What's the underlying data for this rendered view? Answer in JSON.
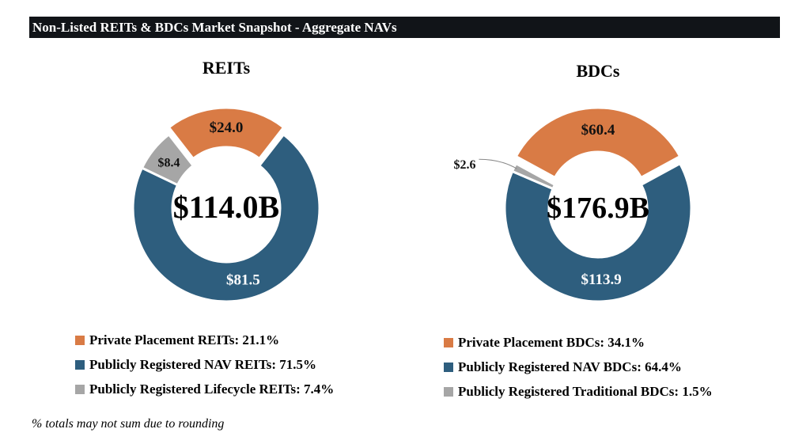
{
  "title": "Non-Listed REITs & BDCs Market Snapshot - Aggregate NAVs",
  "note": "% totals may not sum due to rounding",
  "colors": {
    "orange": "#D97B45",
    "blue": "#2E5E7E",
    "gray": "#A6A6A6"
  },
  "chart_data": [
    {
      "type": "pie",
      "title": "REITs",
      "center_label": "$114.0B",
      "categories": [
        "Private Placement REITs",
        "Publicly Registered NAV REITs",
        "Publicly Registered Lifecycle REITs"
      ],
      "values": [
        24.0,
        81.5,
        8.4
      ],
      "data_labels": [
        "$24.0",
        "$81.5",
        "$8.4"
      ],
      "legend": [
        "Private Placement REITs: 21.1%",
        "Publicly Registered NAV REITs: 71.5%",
        "Publicly Registered Lifecycle REITs: 7.4%"
      ],
      "legend_placement": "bottom"
    },
    {
      "type": "pie",
      "title": "BDCs",
      "center_label": "$176.9B",
      "categories": [
        "Private Placement BDCs",
        "Publicly Registered NAV BDCs",
        "Publicly Registered Traditional BDCs"
      ],
      "values": [
        60.4,
        113.9,
        2.6
      ],
      "data_labels": [
        "$60.4",
        "$113.9",
        "$2.6"
      ],
      "legend": [
        "Private Placement BDCs: 34.1%",
        "Publicly Registered NAV BDCs: 64.4%",
        "Publicly Registered Traditional BDCs: 1.5%"
      ],
      "legend_placement": "bottom"
    }
  ]
}
